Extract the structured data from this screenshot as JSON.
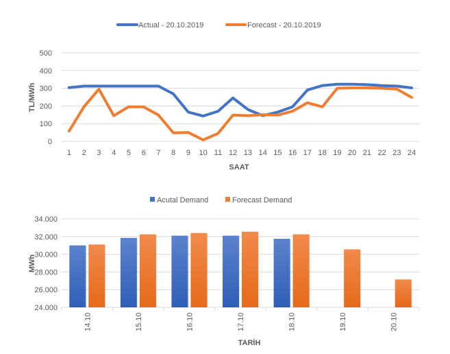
{
  "chart_data": [
    {
      "type": "line",
      "title": "",
      "xlabel": "SAAT",
      "ylabel": "TL/MWh",
      "ylim": [
        0,
        500
      ],
      "yticks": [
        "0",
        "100",
        "200",
        "300",
        "400",
        "500"
      ],
      "ytick_values": [
        0,
        100,
        200,
        300,
        400,
        500
      ],
      "grid": true,
      "legend_position": "top",
      "categories": [
        "1",
        "2",
        "3",
        "4",
        "5",
        "6",
        "7",
        "8",
        "9",
        "10",
        "11",
        "12",
        "13",
        "14",
        "15",
        "16",
        "17",
        "18",
        "19",
        "20",
        "21",
        "22",
        "23",
        "24"
      ],
      "series": [
        {
          "name": "Actual - 20.10.2019",
          "color": "#4472c4",
          "values": [
            303,
            312,
            312,
            312,
            312,
            312,
            312,
            268,
            165,
            143,
            170,
            245,
            180,
            145,
            165,
            195,
            290,
            315,
            323,
            323,
            320,
            315,
            312,
            302
          ]
        },
        {
          "name": "Forecast - 20.10.2019",
          "color": "#ed7d31",
          "values": [
            58,
            195,
            295,
            145,
            195,
            195,
            148,
            48,
            50,
            8,
            45,
            148,
            145,
            150,
            148,
            170,
            218,
            195,
            300,
            302,
            302,
            300,
            295,
            248
          ]
        }
      ]
    },
    {
      "type": "bar",
      "title": "",
      "xlabel": "TARİH",
      "ylabel": "MWh",
      "ylim": [
        24000,
        34000
      ],
      "yticks": [
        "24.000",
        "26.000",
        "28.000",
        "30.000",
        "32.000",
        "34.000"
      ],
      "ytick_values": [
        24000,
        26000,
        28000,
        30000,
        32000,
        34000
      ],
      "grid": true,
      "legend_position": "top",
      "categories": [
        "14.10",
        "15.10",
        "16.10",
        "17.10",
        "18.10",
        "19.10",
        "20.10"
      ],
      "series": [
        {
          "name": "Acutal Demand",
          "color": "#4472c4",
          "values": [
            31000,
            31850,
            32100,
            32100,
            31750,
            null,
            null
          ]
        },
        {
          "name": "Forecast Demand",
          "color": "#ed7d31",
          "values": [
            31100,
            32250,
            32400,
            32550,
            32250,
            30550,
            27150
          ]
        }
      ]
    }
  ]
}
